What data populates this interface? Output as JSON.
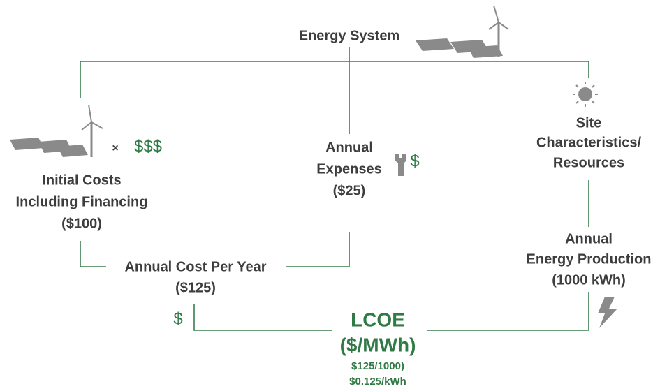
{
  "title": "Energy System",
  "initial_costs": {
    "lines": [
      "Initial Costs",
      "Including Financing",
      "($100)"
    ],
    "multiplier": "×",
    "symbol": "$$$"
  },
  "annual_expenses": {
    "lines": [
      "Annual",
      "Expenses",
      "($25)"
    ],
    "symbol": "$"
  },
  "site": {
    "lines": [
      "Site",
      "Characteristics/",
      "Resources"
    ]
  },
  "annual_production": {
    "lines": [
      "Annual",
      "Energy Production",
      "(1000 kWh)"
    ]
  },
  "annual_cost": {
    "lines": [
      "Annual Cost Per Year",
      "($125)"
    ],
    "symbol": "$"
  },
  "lcoe": {
    "lines": [
      "LCOE",
      "($/MWh)"
    ],
    "formula": [
      "$125/1000)",
      "$0.125/kWh"
    ]
  }
}
